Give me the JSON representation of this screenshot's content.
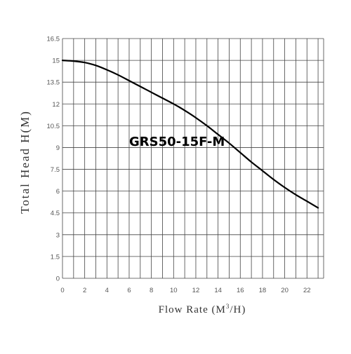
{
  "chart_data": {
    "type": "line",
    "title": "",
    "xlabel": "Flow Rate (M",
    "xlabel_unit_superscript": "3",
    "xlabel_unit_suffix": "/H)",
    "ylabel": "Total Head H(M)",
    "xlim": [
      0,
      23.5
    ],
    "ylim": [
      0,
      16.5
    ],
    "x_ticks": [
      "0",
      "2",
      "4",
      "6",
      "8",
      "10",
      "12",
      "14",
      "16",
      "18",
      "20",
      "22"
    ],
    "y_ticks": [
      "0",
      "1.5",
      "3",
      "4.5",
      "6",
      "7.5",
      "9",
      "10.5",
      "12",
      "13.5",
      "15",
      "16.5"
    ],
    "grid": true,
    "series": [
      {
        "name": "GRS50-15F-M",
        "color": "#000000",
        "x": [
          0,
          1,
          2,
          3,
          4,
          5,
          6,
          7,
          8,
          9,
          10,
          11,
          12,
          13,
          14,
          15,
          16,
          17,
          18,
          19,
          20,
          21,
          22,
          23
        ],
        "y": [
          15.0,
          14.95,
          14.85,
          14.65,
          14.35,
          14.0,
          13.6,
          13.2,
          12.8,
          12.4,
          12.0,
          11.55,
          11.05,
          10.5,
          9.9,
          9.3,
          8.65,
          8.0,
          7.4,
          6.8,
          6.25,
          5.75,
          5.3,
          4.85
        ]
      }
    ],
    "annotation": "GRS50-15F-M"
  }
}
